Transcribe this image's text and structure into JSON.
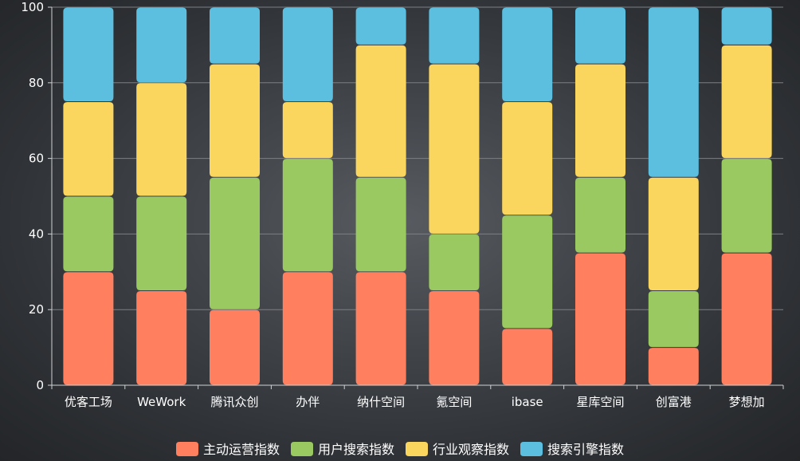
{
  "chart_data": {
    "type": "bar",
    "stacked": true,
    "categories": [
      "优客工场",
      "WeWork",
      "腾讯众创",
      "办伴",
      "纳什空间",
      "氪空间",
      "ibase",
      "星库空间",
      "创富港",
      "梦想加"
    ],
    "series": [
      {
        "name": "主动运营指数",
        "color": "#ff7f5e",
        "values": [
          30,
          25,
          20,
          30,
          30,
          25,
          15,
          35,
          10,
          35
        ]
      },
      {
        "name": "用户搜索指数",
        "color": "#9bc961",
        "values": [
          20,
          25,
          35,
          30,
          25,
          15,
          30,
          20,
          15,
          25
        ]
      },
      {
        "name": "行业观察指数",
        "color": "#fad65e",
        "values": [
          25,
          30,
          30,
          15,
          35,
          45,
          30,
          30,
          30,
          30
        ]
      },
      {
        "name": "搜索引擎指数",
        "color": "#5cbfe0",
        "values": [
          25,
          20,
          15,
          25,
          10,
          15,
          25,
          15,
          45,
          10
        ]
      }
    ],
    "ylim": [
      0,
      100
    ],
    "yticks": [
      0,
      20,
      40,
      60,
      80,
      100
    ],
    "grid": true,
    "legend_position": "bottom-center",
    "xlabel": "",
    "ylabel": ""
  }
}
